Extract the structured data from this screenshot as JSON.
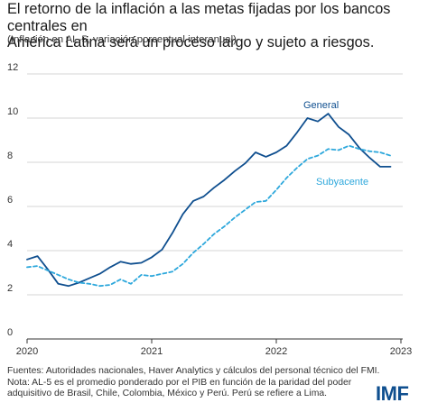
{
  "header": {
    "title_line1": "El retorno de la inflación a las metas fijadas por los bancos centrales en",
    "title_line2": "América Latina será un proceso largo y sujeto a riesgos.",
    "subtitle": "(Inflación en AL-5, variación porcentual interanual)"
  },
  "footer": {
    "sources": "Fuentes: Autoridades nacionales, Haver Analytics y cálculos del personal técnico del FMI.",
    "note_line1": "Nota: AL-5 es el promedio ponderado por el PIB en función de la paridad del poder",
    "note_line2": "adquisitivo de Brasil, Chile, Colombia, México y Perú. Perú se refiere a Lima.",
    "logo": "IMF"
  },
  "chart_data": {
    "type": "line",
    "xlim": [
      2020.0,
      2023.0
    ],
    "ylim": [
      0,
      12
    ],
    "yticks": [
      "0",
      "2",
      "4",
      "6",
      "8",
      "10",
      "12"
    ],
    "xticks": [
      "2020",
      "2021",
      "2022",
      "2023"
    ],
    "grid": "horizontal",
    "colors": {
      "general": "#0f4f8f",
      "subyacente": "#2ea8dc"
    },
    "x": [
      2020.0,
      2020.083,
      2020.167,
      2020.25,
      2020.333,
      2020.417,
      2020.5,
      2020.583,
      2020.667,
      2020.75,
      2020.833,
      2020.917,
      2021.0,
      2021.083,
      2021.167,
      2021.25,
      2021.333,
      2021.417,
      2021.5,
      2021.583,
      2021.667,
      2021.75,
      2021.833,
      2021.917,
      2022.0,
      2022.083,
      2022.167,
      2022.25,
      2022.333,
      2022.417,
      2022.5,
      2022.583,
      2022.667,
      2022.75,
      2022.833,
      2022.917
    ],
    "series": [
      {
        "name": "General",
        "style": "solid",
        "values": [
          3.6,
          3.75,
          3.15,
          2.5,
          2.4,
          2.55,
          2.75,
          2.95,
          3.25,
          3.5,
          3.4,
          3.45,
          3.7,
          4.05,
          4.8,
          5.65,
          6.25,
          6.45,
          6.85,
          7.2,
          7.6,
          7.95,
          8.45,
          8.25,
          8.45,
          8.75,
          9.35,
          10.0,
          9.85,
          10.2,
          9.6,
          9.25,
          8.65,
          8.2,
          7.8,
          7.8
        ]
      },
      {
        "name": "Subyacente",
        "style": "dashed",
        "values": [
          3.25,
          3.3,
          3.1,
          2.9,
          2.7,
          2.55,
          2.5,
          2.4,
          2.45,
          2.7,
          2.5,
          2.9,
          2.85,
          2.95,
          3.05,
          3.4,
          3.9,
          4.3,
          4.75,
          5.1,
          5.5,
          5.85,
          6.2,
          6.25,
          6.75,
          7.3,
          7.75,
          8.15,
          8.3,
          8.6,
          8.55,
          8.75,
          8.6,
          8.5,
          8.45,
          8.3
        ]
      }
    ]
  }
}
